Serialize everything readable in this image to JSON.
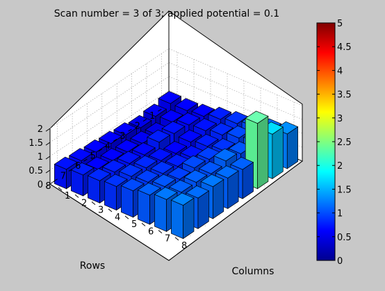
{
  "chart_data": {
    "type": "bar3d",
    "title": "Scan number = 3 of 3; applied potential = 0.1",
    "xlabel": "Columns",
    "ylabel": "Rows",
    "zlabel": "",
    "columns": [
      "1",
      "2",
      "3",
      "4",
      "5",
      "6",
      "7",
      "8"
    ],
    "rows": [
      "1",
      "2",
      "3",
      "4",
      "5",
      "6",
      "7",
      "8"
    ],
    "zlim": [
      0,
      2
    ],
    "zticks": [
      "0",
      "0.5",
      "1",
      "1.5",
      "2"
    ],
    "grid": true,
    "colormap": "jet",
    "colorbar": {
      "range": [
        0,
        5
      ],
      "ticks": [
        "0",
        "0.5",
        "1",
        "1.5",
        "2",
        "2.5",
        "3",
        "3.5",
        "4",
        "4.5",
        "5"
      ]
    },
    "values": [
      [
        0.55,
        0.55,
        0.6,
        0.75,
        0.85,
        1.0,
        1.1,
        1.25
      ],
      [
        0.45,
        0.5,
        0.65,
        0.7,
        0.8,
        0.95,
        1.05,
        1.6
      ],
      [
        0.4,
        0.4,
        0.7,
        0.65,
        0.75,
        0.85,
        1.0,
        2.35
      ],
      [
        0.5,
        0.45,
        0.75,
        0.6,
        0.7,
        0.9,
        1.1,
        1.05
      ],
      [
        0.55,
        0.5,
        0.65,
        0.7,
        0.75,
        0.95,
        1.0,
        1.1
      ],
      [
        0.6,
        0.55,
        0.7,
        0.8,
        0.85,
        0.9,
        1.05,
        1.15
      ],
      [
        0.65,
        0.6,
        0.75,
        0.85,
        0.9,
        1.0,
        1.05,
        1.1
      ],
      [
        0.7,
        0.75,
        0.8,
        0.85,
        0.95,
        1.05,
        1.15,
        1.2
      ]
    ]
  }
}
